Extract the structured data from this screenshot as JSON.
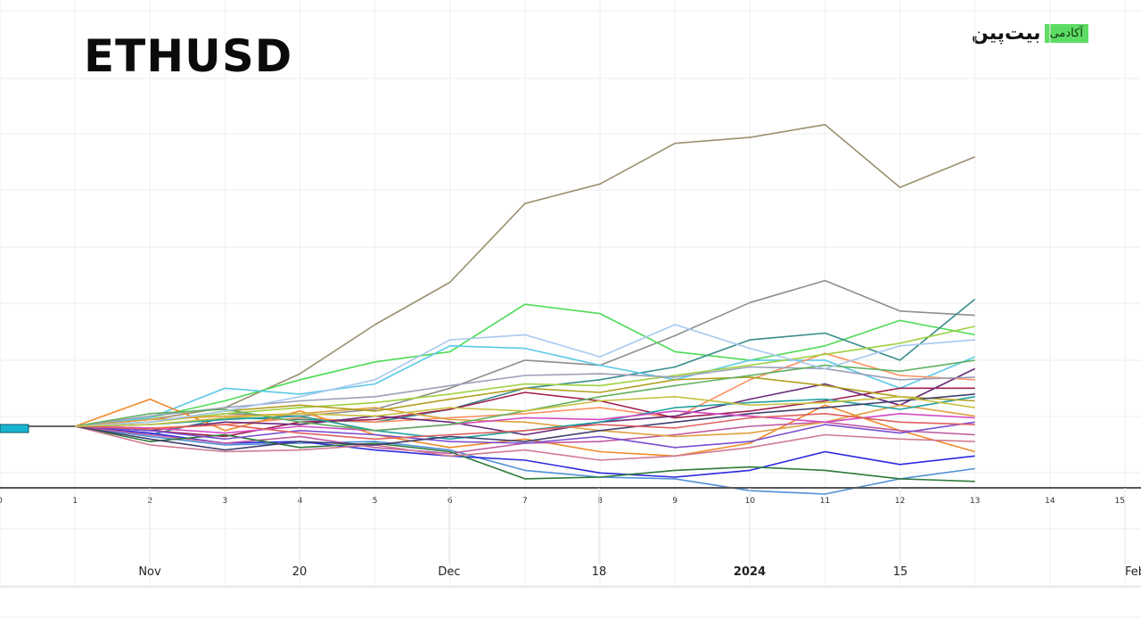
{
  "header": {
    "title": "ETHUSD"
  },
  "logo": {
    "word": "بیت‌پین",
    "badge": "آکادمی"
  },
  "chart_data": {
    "type": "line",
    "title": "ETHUSD",
    "grid": true,
    "legend": "none",
    "index_labels": [
      "0",
      "1",
      "2",
      "3",
      "4",
      "5",
      "6",
      "7",
      "8",
      "9",
      "10",
      "11",
      "12",
      "13",
      "14",
      "15"
    ],
    "date_ticks": [
      {
        "label": "Nov",
        "bold": false
      },
      {
        "label": "20",
        "bold": false
      },
      {
        "label": "Dec",
        "bold": false
      },
      {
        "label": "18",
        "bold": false
      },
      {
        "label": "2024",
        "bold": true
      },
      {
        "label": "15",
        "bold": false
      },
      {
        "label": "Feb",
        "bold": false
      }
    ],
    "x_range": [
      0,
      15
    ],
    "y_range": [
      -0.9,
      3.9
    ],
    "start_index": 1,
    "series": [
      {
        "color": "#9a9070",
        "values": [
          0,
          0.08,
          0.22,
          0.62,
          1.2,
          1.7,
          2.63,
          2.86,
          3.34,
          3.41,
          3.56,
          2.82,
          3.18
        ]
      },
      {
        "color": "#8e8e8e",
        "values": [
          0,
          0.05,
          0.15,
          0.12,
          0.2,
          0.45,
          0.78,
          0.72,
          1.07,
          1.46,
          1.72,
          1.36,
          1.31
        ]
      },
      {
        "color": "#4ddb55",
        "values": [
          0,
          0.1,
          0.3,
          0.55,
          0.76,
          0.88,
          1.44,
          1.33,
          0.88,
          0.78,
          0.95,
          1.25,
          1.08
        ]
      },
      {
        "color": "#3a8c8c",
        "values": [
          0,
          -0.1,
          0.1,
          0.08,
          0.05,
          0.2,
          0.45,
          0.55,
          0.7,
          1.02,
          1.1,
          0.78,
          1.5
        ]
      },
      {
        "color": "#5ac8e6",
        "values": [
          0,
          0.1,
          0.45,
          0.38,
          0.5,
          0.95,
          0.92,
          0.72,
          0.55,
          0.78,
          0.78,
          0.45,
          0.82
        ]
      },
      {
        "color": "#4f8fd6",
        "values": [
          0,
          -0.12,
          -0.22,
          -0.2,
          -0.18,
          -0.28,
          -0.52,
          -0.6,
          -0.62,
          -0.76,
          -0.8,
          -0.62,
          -0.5
        ]
      },
      {
        "color": "#2a2ae0",
        "values": [
          0,
          -0.08,
          -0.2,
          -0.18,
          -0.28,
          -0.35,
          -0.4,
          -0.55,
          -0.6,
          -0.52,
          -0.3,
          -0.45,
          -0.35
        ]
      },
      {
        "color": "#ff9060",
        "values": [
          0,
          -0.02,
          0.02,
          0.1,
          0.05,
          0.1,
          0.15,
          0.22,
          0.1,
          0.55,
          0.86,
          0.6,
          0.55
        ]
      },
      {
        "color": "#f08a2a",
        "values": [
          0,
          0.32,
          -0.05,
          0.18,
          -0.1,
          -0.25,
          -0.15,
          -0.3,
          -0.35,
          -0.2,
          0.25,
          -0.05,
          -0.3
        ]
      },
      {
        "color": "#a02050",
        "values": [
          0,
          -0.05,
          -0.12,
          0.05,
          0.08,
          0.2,
          0.4,
          0.3,
          0.1,
          0.18,
          0.3,
          0.45,
          0.45
        ]
      },
      {
        "color": "#9fd040",
        "values": [
          0,
          0.05,
          0.15,
          0.22,
          0.28,
          0.38,
          0.5,
          0.48,
          0.6,
          0.72,
          0.85,
          0.98,
          1.18
        ]
      },
      {
        "color": "#c05aa0",
        "values": [
          0,
          -0.1,
          -0.2,
          -0.12,
          -0.25,
          -0.32,
          -0.2,
          -0.18,
          -0.1,
          0,
          0.05,
          -0.05,
          -0.1
        ]
      },
      {
        "color": "#6a2a7a",
        "values": [
          0,
          -0.05,
          0.05,
          0.02,
          0.12,
          0.05,
          -0.1,
          0.05,
          0.12,
          0.32,
          0.5,
          0.25,
          0.68
        ]
      },
      {
        "color": "#2e7a3a",
        "values": [
          0,
          -0.18,
          -0.1,
          -0.25,
          -0.2,
          -0.3,
          -0.62,
          -0.6,
          -0.52,
          -0.48,
          -0.52,
          -0.62,
          -0.65
        ]
      },
      {
        "color": "#d07a90",
        "values": [
          0,
          -0.22,
          -0.3,
          -0.28,
          -0.22,
          -0.35,
          -0.28,
          -0.4,
          -0.35,
          -0.25,
          -0.1,
          -0.15,
          -0.18
        ]
      },
      {
        "color": "#e0a040",
        "values": [
          0,
          0.08,
          0.12,
          0.15,
          0.22,
          0.08,
          0.05,
          -0.05,
          -0.12,
          -0.08,
          0.05,
          0.25,
          0.12
        ]
      },
      {
        "color": "#7a4fd0",
        "values": [
          0,
          -0.05,
          -0.15,
          -0.05,
          -0.1,
          -0.18,
          -0.2,
          -0.12,
          -0.25,
          -0.18,
          0.02,
          -0.08,
          0.05
        ]
      },
      {
        "color": "#20a0a0",
        "values": [
          0,
          0.02,
          0.08,
          0.12,
          -0.05,
          -0.15,
          -0.05,
          0.05,
          0.22,
          0.28,
          0.32,
          0.2,
          0.35
        ]
      },
      {
        "color": "#b0a020",
        "values": [
          0,
          0.05,
          0.18,
          0.25,
          0.18,
          0.32,
          0.45,
          0.4,
          0.55,
          0.58,
          0.48,
          0.35,
          0.3
        ]
      },
      {
        "color": "#404070",
        "values": [
          0,
          -0.15,
          -0.28,
          -0.18,
          -0.22,
          -0.12,
          -0.18,
          -0.05,
          0.05,
          0.15,
          0.22,
          0.3,
          0.38
        ]
      },
      {
        "color": "#9aa0b8",
        "values": [
          0,
          0.12,
          0.22,
          0.3,
          0.35,
          0.48,
          0.6,
          0.62,
          0.58,
          0.7,
          0.68,
          0.55,
          0.58
        ]
      },
      {
        "color": "#d44ac4",
        "values": [
          0,
          -0.02,
          -0.08,
          0,
          -0.05,
          0.02,
          0.1,
          0.08,
          0.18,
          0.12,
          0.05,
          0.15,
          0.1
        ]
      },
      {
        "color": "#60b060",
        "values": [
          0,
          0.15,
          0.2,
          0.05,
          -0.05,
          0.02,
          0.18,
          0.35,
          0.48,
          0.6,
          0.72,
          0.65,
          0.78
        ]
      },
      {
        "color": "#e06060",
        "values": [
          0,
          -0.03,
          0.02,
          -0.08,
          -0.15,
          -0.1,
          -0.05,
          0.02,
          -0.02,
          0.1,
          0.15,
          0.05,
          0.02
        ]
      },
      {
        "color": "#a8c8f0",
        "values": [
          0,
          0.05,
          0.18,
          0.35,
          0.55,
          1.02,
          1.08,
          0.82,
          1.2,
          0.92,
          0.68,
          0.95,
          1.02
        ]
      },
      {
        "color": "#c8c040",
        "values": [
          0,
          0.02,
          0.1,
          0.15,
          0.12,
          0.22,
          0.18,
          0.3,
          0.35,
          0.25,
          0.28,
          0.35,
          0.22
        ]
      }
    ]
  }
}
